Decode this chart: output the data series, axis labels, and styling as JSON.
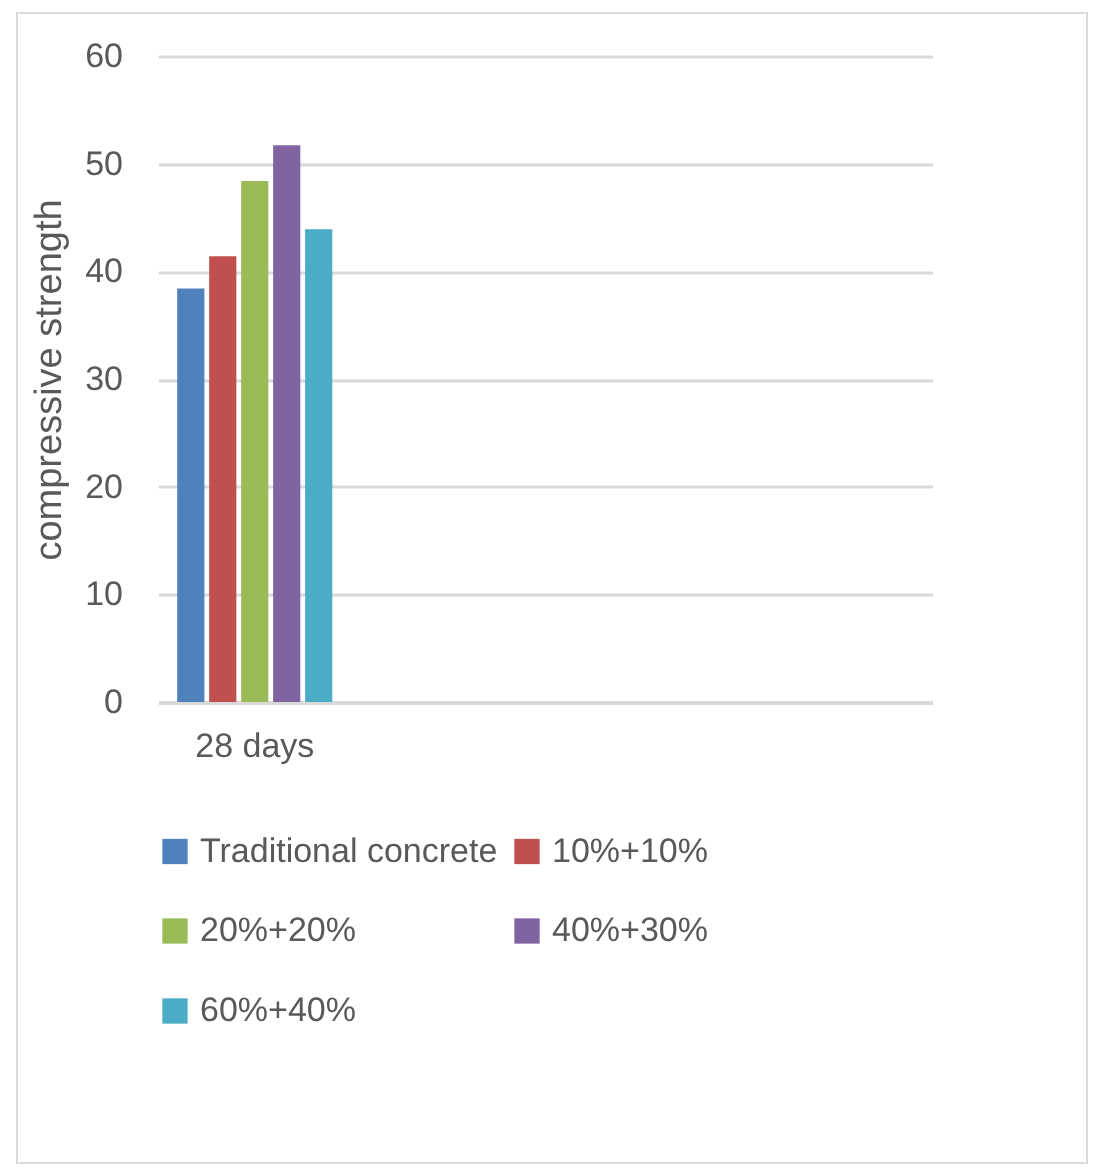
{
  "chart_data": {
    "type": "bar",
    "ylabel": "compressive strength",
    "categories": [
      "28 days",
      null,
      null,
      null
    ],
    "series": [
      {
        "name": "Traditional concrete",
        "color": "#4f81bd",
        "values": [
          38.4,
          null,
          null,
          null
        ]
      },
      {
        "name": "10%+10%",
        "color": "#c0504d",
        "values": [
          41.4,
          null,
          null,
          null
        ]
      },
      {
        "name": "20%+20%",
        "color": "#9bbb59",
        "values": [
          48.4,
          null,
          null,
          null
        ]
      },
      {
        "name": "40%+30%",
        "color": "#8064a2",
        "values": [
          51.7,
          null,
          null,
          null
        ]
      },
      {
        "name": "60%+40%",
        "color": "#4bacc6",
        "values": [
          43.9,
          null,
          null,
          null
        ]
      }
    ],
    "ylim": [
      0,
      60
    ],
    "yticks": [
      0,
      10,
      20,
      30,
      40,
      50,
      60
    ],
    "grid": "y",
    "legend": "bottom"
  }
}
